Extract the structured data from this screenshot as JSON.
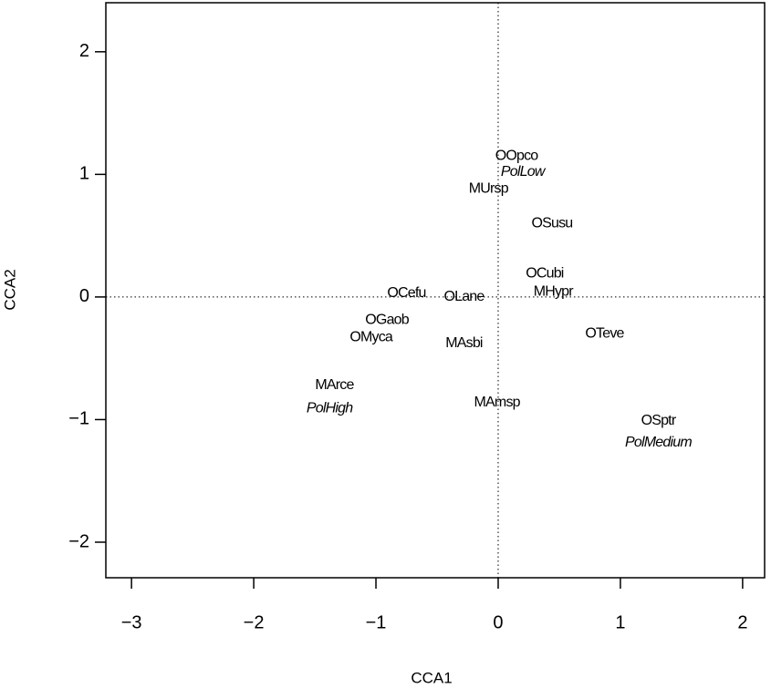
{
  "chart_data": {
    "type": "scatter",
    "x_label": "CCA1",
    "y_label": "CCA2",
    "xlim": [
      -3.21,
      2.18
    ],
    "ylim": [
      -2.29,
      2.4
    ],
    "xticks": [
      {
        "value": -3,
        "label": "−3"
      },
      {
        "value": -2,
        "label": "−2"
      },
      {
        "value": -1,
        "label": "−1"
      },
      0,
      1,
      2
    ],
    "yticks": [
      {
        "value": -2,
        "label": "−2"
      },
      {
        "value": -1,
        "label": "−1"
      },
      0,
      1,
      2
    ],
    "zero_lines": true,
    "color": "#000000",
    "points": [
      {
        "label": "OOpco",
        "x": 0.15,
        "y": 1.15
      },
      {
        "label": "PolLow",
        "x": 0.2,
        "y": 1.02,
        "italic": true
      },
      {
        "label": "MUrsp",
        "x": -0.08,
        "y": 0.88
      },
      {
        "label": "OSusu",
        "x": 0.44,
        "y": 0.6
      },
      {
        "label": "OCubi",
        "x": 0.38,
        "y": 0.19
      },
      {
        "label": "MHypr",
        "x": 0.45,
        "y": 0.04
      },
      {
        "label": "OCefu",
        "x": -0.75,
        "y": 0.03
      },
      {
        "label": "OLane",
        "x": -0.28,
        "y": 0.0
      },
      {
        "label": "OGaob",
        "x": -0.91,
        "y": -0.19
      },
      {
        "label": "OMyca",
        "x": -1.04,
        "y": -0.33
      },
      {
        "label": "MAsbi",
        "x": -0.28,
        "y": -0.38
      },
      {
        "label": "OTeve",
        "x": 0.87,
        "y": -0.3
      },
      {
        "label": "MArce",
        "x": -1.34,
        "y": -0.72
      },
      {
        "label": "PolHigh",
        "x": -1.38,
        "y": -0.91,
        "italic": true
      },
      {
        "label": "MAmsp",
        "x": -0.01,
        "y": -0.86
      },
      {
        "label": "OSptr",
        "x": 1.31,
        "y": -1.01
      },
      {
        "label": "PolMedium",
        "x": 1.31,
        "y": -1.19,
        "italic": true
      }
    ]
  }
}
